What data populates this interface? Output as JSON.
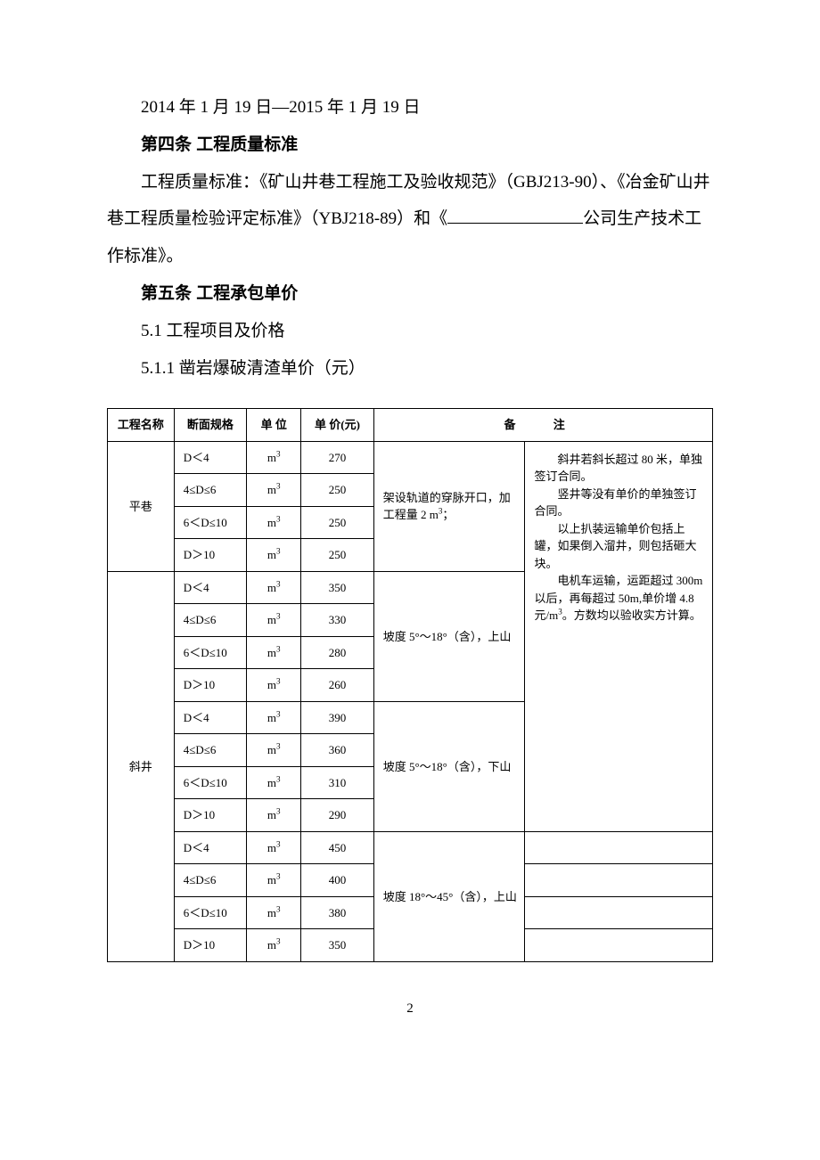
{
  "body": {
    "line1": "2014 年 1 月 19 日—2015 年 1 月 19 日",
    "article4_title": "第四条 工程质量标准",
    "article4_para_a": "工程质量标准：《矿山井巷工程施工及验收规范》（GBJ213-90）、《冶金矿山井巷工程质量检验评定标准》（YBJ218-89）和《",
    "article4_para_b": "公司生产技术工作标准》。",
    "article5_title": "第五条 工程承包单价",
    "sec_5_1": "5.1 工程项目及价格",
    "sec_5_1_1": "5.1.1 凿岩爆破清渣单价（元）"
  },
  "table": {
    "headers": {
      "col1": "工程名称",
      "col2": "断面规格",
      "col3": "单 位",
      "col4": "单 价(元)",
      "col5": "备  注"
    },
    "unit": "m³",
    "spec": {
      "a": "D＜4",
      "b": "4≤D≤6",
      "c": "6＜D≤10",
      "d": "D＞10"
    },
    "section1": {
      "name": "平巷",
      "prices": [
        "270",
        "250",
        "250",
        "250"
      ],
      "note": "架设轨道的穿脉开口，加工程量 2 m³；"
    },
    "section2": {
      "name": "斜井",
      "group1": {
        "prices": [
          "350",
          "330",
          "280",
          "260"
        ],
        "note": "坡度 5°～18°（含），上山"
      },
      "group2": {
        "prices": [
          "390",
          "360",
          "310",
          "290"
        ],
        "note": "坡度 5°～18°（含），下山"
      },
      "group3": {
        "prices": [
          "450",
          "400",
          "380",
          "350"
        ],
        "note": "坡度 18°～45°（含），上山"
      }
    },
    "remarks": {
      "p1": "斜井若斜长超过 80 米，单独签订合同。",
      "p2": "竖井等没有单价的单独签订合同。",
      "p3": "以上扒装运输单价包括上罐，如果倒入溜井，则包括砸大块。",
      "p4": "电机车运输，运距超过 300m 以后，再每超过 50m,单价增 4.8 元/m³。方数均以验收实方计算。"
    }
  },
  "page_number": "2"
}
